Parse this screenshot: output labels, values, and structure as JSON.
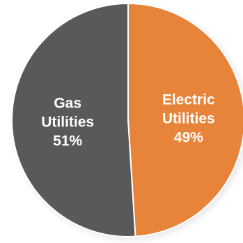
{
  "chart_data": {
    "type": "pie",
    "title": "",
    "slices": [
      {
        "label_lines": [
          "Electric",
          "Utilities"
        ],
        "value": 49,
        "value_label": "49%",
        "color": "#E8833A"
      },
      {
        "label_lines": [
          "Gas",
          "Utilities"
        ],
        "value": 51,
        "value_label": "51%",
        "color": "#595959"
      }
    ],
    "start_angle_deg": 0,
    "direction": "clockwise",
    "slice_border_color": "#ffffff",
    "legend": "none"
  }
}
